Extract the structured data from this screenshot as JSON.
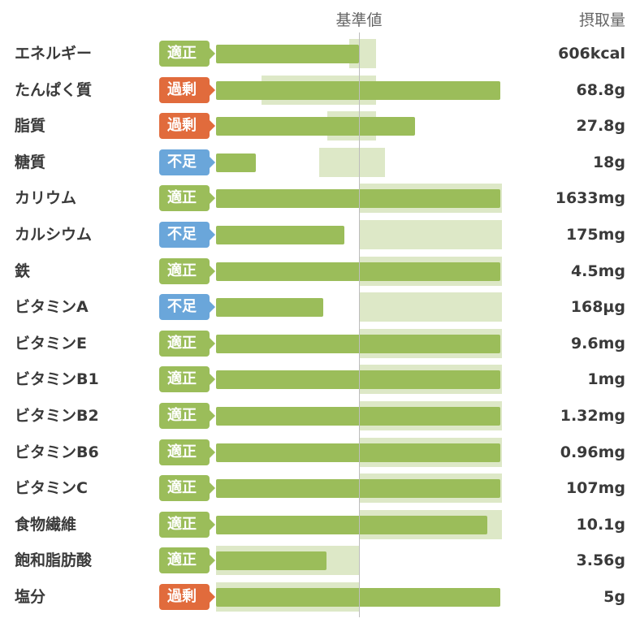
{
  "chart_data": {
    "type": "bar",
    "header": {
      "reference_label": "基準値",
      "intake_label": "摂取量"
    },
    "status_colors": {
      "適正": "#9bbd5a",
      "過剰": "#e16b3c",
      "不足": "#6aa6da"
    },
    "bar_color": "#9bbd5a",
    "range_color": "#dde8c7",
    "scale_note": "values expressed as fraction of reference (1.0 = reference line)",
    "rows": [
      {
        "name": "エネルギー",
        "status": "適正",
        "intake": "606kcal",
        "ratio": 1.0,
        "range": [
          0.93,
          1.12
        ]
      },
      {
        "name": "たんぱく質",
        "status": "過剰",
        "intake": "68.8g",
        "ratio": 1.99,
        "range": [
          0.32,
          1.12
        ]
      },
      {
        "name": "脂質",
        "status": "過剰",
        "intake": "27.8g",
        "ratio": 1.39,
        "range": [
          0.78,
          1.12
        ]
      },
      {
        "name": "糖質",
        "status": "不足",
        "intake": "18g",
        "ratio": 0.28,
        "range": [
          0.72,
          1.18
        ]
      },
      {
        "name": "カリウム",
        "status": "適正",
        "intake": "1633mg",
        "ratio": 1.99,
        "range": [
          1.0,
          2.0
        ]
      },
      {
        "name": "カルシウム",
        "status": "不足",
        "intake": "175mg",
        "ratio": 0.9,
        "range": [
          1.0,
          2.0
        ]
      },
      {
        "name": "鉄",
        "status": "適正",
        "intake": "4.5mg",
        "ratio": 1.99,
        "range": [
          1.0,
          2.0
        ]
      },
      {
        "name": "ビタミンA",
        "status": "不足",
        "intake": "168µg",
        "ratio": 0.75,
        "range": [
          1.0,
          2.0
        ]
      },
      {
        "name": "ビタミンE",
        "status": "適正",
        "intake": "9.6mg",
        "ratio": 1.99,
        "range": [
          1.0,
          2.0
        ]
      },
      {
        "name": "ビタミンB1",
        "status": "適正",
        "intake": "1mg",
        "ratio": 1.99,
        "range": [
          1.0,
          2.0
        ]
      },
      {
        "name": "ビタミンB2",
        "status": "適正",
        "intake": "1.32mg",
        "ratio": 1.99,
        "range": [
          1.0,
          2.0
        ]
      },
      {
        "name": "ビタミンB6",
        "status": "適正",
        "intake": "0.96mg",
        "ratio": 1.99,
        "range": [
          1.0,
          2.0
        ]
      },
      {
        "name": "ビタミンC",
        "status": "適正",
        "intake": "107mg",
        "ratio": 1.99,
        "range": [
          1.0,
          2.0
        ]
      },
      {
        "name": "食物繊維",
        "status": "適正",
        "intake": "10.1g",
        "ratio": 1.9,
        "range": [
          1.0,
          2.0
        ]
      },
      {
        "name": "飽和脂肪酸",
        "status": "適正",
        "intake": "3.56g",
        "ratio": 0.77,
        "range": [
          0.0,
          1.0
        ]
      },
      {
        "name": "塩分",
        "status": "過剰",
        "intake": "5g",
        "ratio": 1.99,
        "range": [
          0.0,
          1.0
        ]
      }
    ]
  }
}
